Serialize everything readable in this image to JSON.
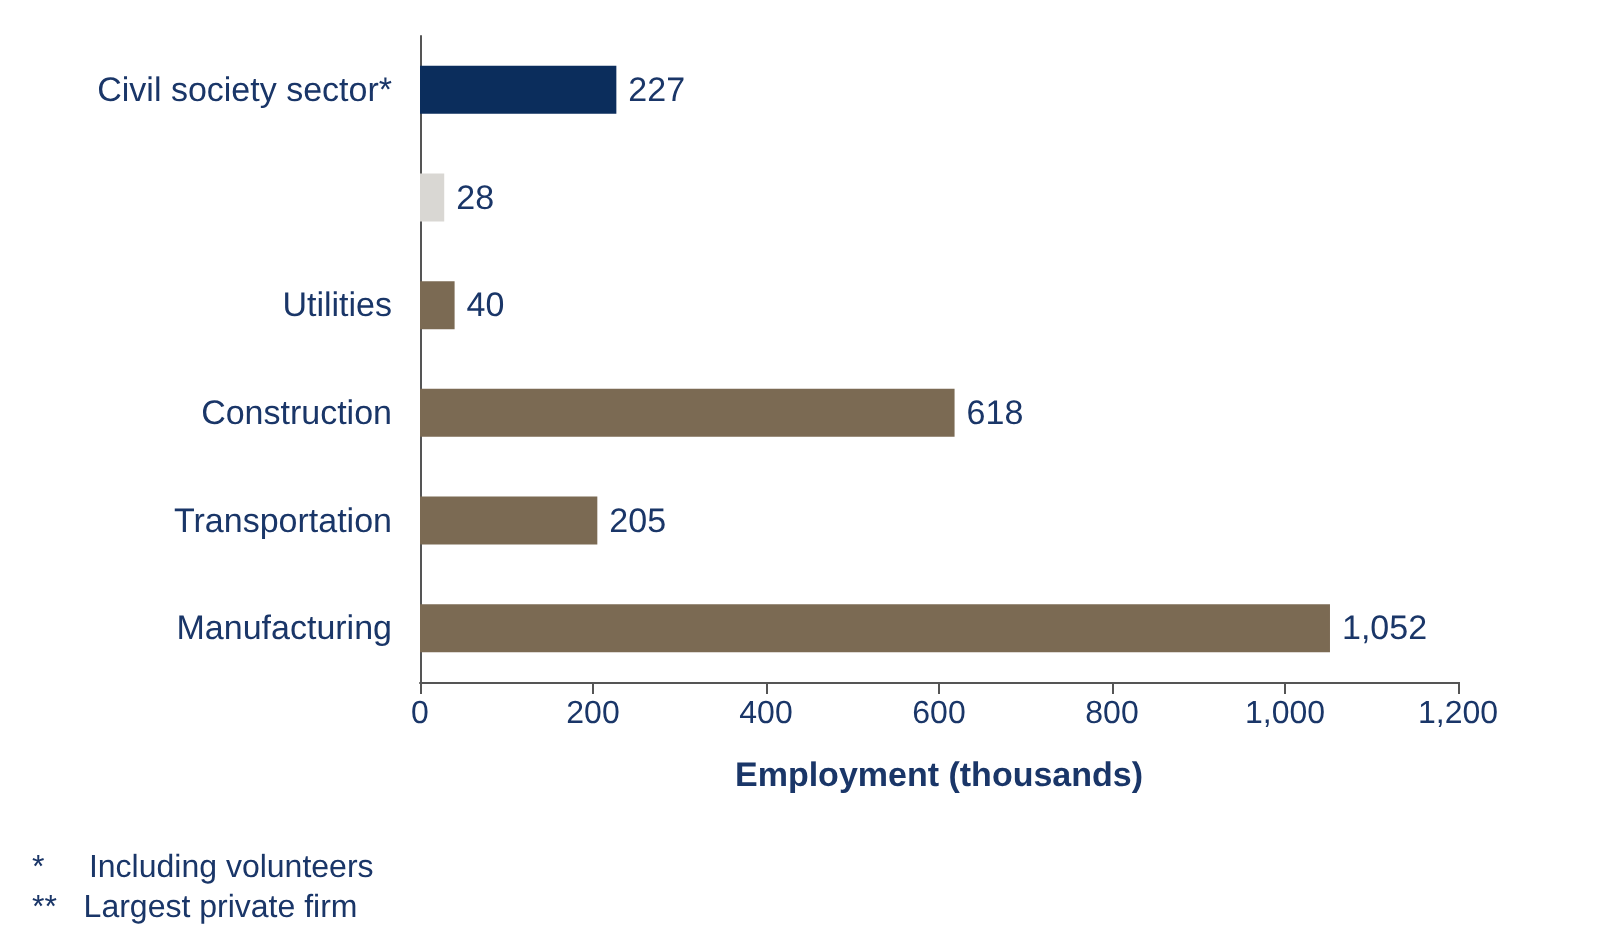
{
  "chart_data": {
    "type": "bar",
    "orientation": "horizontal",
    "xlabel": "Employment (thousands)",
    "categories": [
      "Civil society sector*",
      null,
      "Utilities",
      "Construction",
      "Transportation",
      "Manufacturing"
    ],
    "values": [
      227,
      28,
      40,
      618,
      205,
      1052
    ],
    "colors": [
      "#0b2d5c",
      "#d9d7d3",
      "#7b6a53",
      "#7b6a53",
      "#7b6a53",
      "#7b6a53"
    ],
    "value_labels": [
      "227",
      "28",
      "40",
      "618",
      "205",
      "1,052"
    ],
    "xlim": [
      0,
      1200
    ],
    "xticks": [
      0,
      200,
      400,
      600,
      800,
      {
        "value": 1000,
        "label": "1,000"
      },
      {
        "value": 1200,
        "label": "1,200"
      }
    ],
    "grid": false,
    "annotations": [
      "*     Including volunteers",
      "**   Largest private firm"
    ]
  }
}
